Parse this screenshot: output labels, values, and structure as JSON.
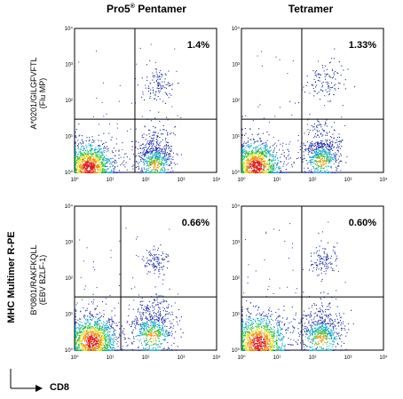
{
  "columns": {
    "left_title_base": "Pro5",
    "left_title_sup": "®",
    "left_title_rest": " Pentamer",
    "right_title": "Tetramer"
  },
  "rows": {
    "top_label_line1": "A*0201/GILGFVFTL",
    "top_label_line2": "(Flu MP)",
    "bottom_label_line1": "B*0801/RAKFKQLL",
    "bottom_label_line2": "(EBV BZLF-1)"
  },
  "axes": {
    "y_label": "MHC Multimer R-PE",
    "x_label": "CD8",
    "tick_labels": [
      "10⁰",
      "10¹",
      "10²",
      "10³",
      "10⁴"
    ]
  },
  "chart_data": [
    {
      "type": "scatter",
      "panel": "pentamer-flu",
      "x_scale": "log",
      "y_scale": "log",
      "xlim": [
        1,
        10000
      ],
      "ylim": [
        1,
        10000
      ],
      "gate_x": 50,
      "gate_y": 30,
      "upper_right_percent": "1.4%",
      "populations": [
        {
          "cx": 2.5,
          "cy": 1.4,
          "spread": 0.35,
          "density": "high"
        },
        {
          "cx": 180,
          "cy": 1.6,
          "spread": 0.25,
          "density": "medium"
        },
        {
          "cx": 220,
          "cy": 280,
          "spread": 0.22,
          "density": "low"
        }
      ]
    },
    {
      "type": "scatter",
      "panel": "tetramer-flu",
      "x_scale": "log",
      "y_scale": "log",
      "xlim": [
        1,
        10000
      ],
      "ylim": [
        1,
        10000
      ],
      "gate_x": 50,
      "gate_y": 30,
      "upper_right_percent": "1.33%",
      "populations": [
        {
          "cx": 2.5,
          "cy": 1.5,
          "spread": 0.35,
          "density": "high"
        },
        {
          "cx": 180,
          "cy": 2.0,
          "spread": 0.25,
          "density": "medium"
        },
        {
          "cx": 230,
          "cy": 350,
          "spread": 0.3,
          "density": "low"
        }
      ]
    },
    {
      "type": "scatter",
      "panel": "pentamer-ebv",
      "x_scale": "log",
      "y_scale": "log",
      "xlim": [
        1,
        10000
      ],
      "ylim": [
        1,
        10000
      ],
      "gate_x": 20,
      "gate_y": 30,
      "upper_right_percent": "0.66%",
      "populations": [
        {
          "cx": 3,
          "cy": 1.8,
          "spread": 0.35,
          "density": "high"
        },
        {
          "cx": 150,
          "cy": 2.5,
          "spread": 0.3,
          "density": "medium"
        },
        {
          "cx": 180,
          "cy": 300,
          "spread": 0.2,
          "density": "low"
        }
      ]
    },
    {
      "type": "scatter",
      "panel": "tetramer-ebv",
      "x_scale": "log",
      "y_scale": "log",
      "xlim": [
        1,
        10000
      ],
      "ylim": [
        1,
        10000
      ],
      "gate_x": 50,
      "gate_y": 30,
      "upper_right_percent": "0.60%",
      "populations": [
        {
          "cx": 3,
          "cy": 1.6,
          "spread": 0.4,
          "density": "high"
        },
        {
          "cx": 170,
          "cy": 2.0,
          "spread": 0.3,
          "density": "medium"
        },
        {
          "cx": 200,
          "cy": 300,
          "spread": 0.2,
          "density": "low"
        }
      ]
    }
  ]
}
